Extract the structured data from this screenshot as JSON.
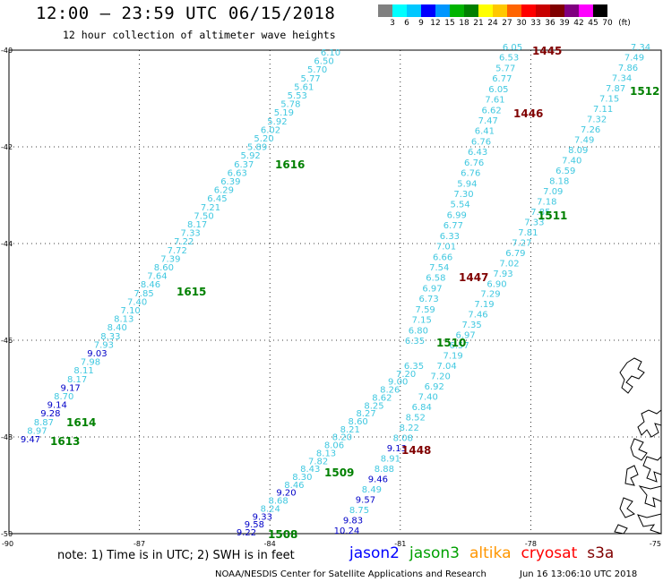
{
  "header": {
    "title": "12:00 – 23:59 UTC 06/15/2018",
    "subtitle": "12 hour collection of altimeter wave heights"
  },
  "legend": {
    "levels": [
      "3",
      "6",
      "9",
      "12",
      "15",
      "18",
      "21",
      "24",
      "27",
      "30",
      "33",
      "36",
      "39",
      "42",
      "45",
      "70",
      "(ft)"
    ],
    "colors": [
      "#808080",
      "#00ffff",
      "#00c8ff",
      "#0000ff",
      "#0096ff",
      "#00b400",
      "#008000",
      "#ffff00",
      "#ffc800",
      "#ff6400",
      "#ff0000",
      "#c80000",
      "#800000",
      "#800080",
      "#ff00ff",
      "#000000"
    ]
  },
  "axes": {
    "lat_labels": [
      "-40",
      "-42",
      "-44",
      "-46",
      "-48",
      "-50"
    ],
    "lon_labels": [
      "-90",
      "-87",
      "-84",
      "-81",
      "-78",
      "-75"
    ]
  },
  "colors": {
    "light": "#40c8e0",
    "blue": "#0000c8",
    "green": "#008000",
    "maroon": "#800000"
  },
  "tracks": [
    {
      "values": [
        "6.10",
        "6.50",
        "5.70",
        "5.77",
        "5.61",
        "5.53",
        "5.78",
        "5.19",
        "5.92",
        "6.02",
        "5.20",
        "5.89",
        "5.92",
        "6.37",
        "6.63",
        "6.39",
        "6.29",
        "6.45",
        "7.21",
        "7.50",
        "8.17",
        "7.33",
        "7.22",
        "7.72",
        "7.39",
        "8.60",
        "7.64",
        "8.46",
        "7.85",
        "7.40",
        "7.10",
        "8.13",
        "8.40",
        "8.33",
        "7.93",
        "9.03",
        "7.98",
        "8.11",
        "8.17",
        "9.17",
        "8.70",
        "9.14",
        "9.28",
        "8.87",
        "8.97",
        "9.47"
      ],
      "colorIdx": [
        0,
        0,
        0,
        0,
        0,
        0,
        0,
        0,
        0,
        0,
        0,
        0,
        0,
        0,
        0,
        0,
        0,
        0,
        0,
        0,
        0,
        0,
        0,
        0,
        0,
        0,
        0,
        0,
        0,
        0,
        0,
        0,
        0,
        0,
        0,
        1,
        0,
        0,
        0,
        1,
        0,
        1,
        1,
        0,
        0,
        1
      ]
    },
    {
      "values": [
        "6.05",
        "6.53",
        "5.77",
        "6.77",
        "6.05",
        "7.61",
        "6.62",
        "7.47",
        "6.41",
        "6.76",
        "6.43",
        "6.76",
        "6.76",
        "5.94",
        "7.30",
        "5.54",
        "6.99",
        "6.77",
        "6.33",
        "7.01",
        "6.66",
        "7.54",
        "6.58",
        "6.97",
        "6.73",
        "7.59",
        "7.15",
        "6.80",
        "6.35"
      ],
      "colorIdx": [
        0,
        0,
        0,
        0,
        0,
        0,
        0,
        0,
        0,
        0,
        0,
        0,
        0,
        0,
        0,
        0,
        0,
        0,
        0,
        0,
        0,
        0,
        0,
        0,
        0,
        0,
        0,
        0,
        0
      ]
    },
    {
      "values": [
        "7.34",
        "7.49",
        "7.86",
        "7.34",
        "7.87",
        "7.15",
        "7.11",
        "7.32",
        "7.26",
        "7.49",
        "8.09",
        "7.40",
        "6.59",
        "8.18",
        "7.09",
        "7.18",
        "7.85",
        "7.33",
        "7.81",
        "7.27",
        "6.79",
        "7.02",
        "7.93",
        "6.90",
        "7.29",
        "7.19",
        "7.46",
        "7.35",
        "6.97",
        "6.57",
        "7.19",
        "7.04",
        "7.20",
        "6.92",
        "7.40",
        "6.84",
        "8.52",
        "8.22",
        "8.08",
        "9.13",
        "8.91",
        "8.88",
        "9.46",
        "8.49",
        "9.57",
        "8.75",
        "9.83",
        "10.24"
      ],
      "colorIdx": [
        0,
        0,
        0,
        0,
        0,
        0,
        0,
        0,
        0,
        0,
        0,
        0,
        0,
        0,
        0,
        0,
        0,
        0,
        0,
        0,
        0,
        0,
        0,
        0,
        0,
        0,
        0,
        0,
        0,
        0,
        0,
        0,
        0,
        0,
        0,
        0,
        0,
        0,
        0,
        1,
        0,
        0,
        1,
        0,
        1,
        0,
        1,
        1
      ]
    },
    {
      "values": [
        "6.35",
        "7.20",
        "9.00",
        "8.26",
        "8.62",
        "8.25",
        "8.27",
        "8.60",
        "8.21",
        "8.20",
        "8.06",
        "8.13",
        "7.82",
        "8.43",
        "8.30",
        "8.46",
        "9.20",
        "8.68",
        "8.24",
        "9.33",
        "9.58",
        "9.22"
      ],
      "colorIdx": [
        0,
        0,
        0,
        0,
        0,
        0,
        0,
        0,
        0,
        0,
        0,
        0,
        0,
        0,
        0,
        0,
        1,
        0,
        0,
        1,
        1,
        1
      ]
    }
  ],
  "pass_labels": [
    {
      "text": "1445",
      "color": "maroon"
    },
    {
      "text": "1446",
      "color": "maroon"
    },
    {
      "text": "1447",
      "color": "maroon"
    },
    {
      "text": "1448",
      "color": "maroon"
    },
    {
      "text": "1512",
      "color": "green"
    },
    {
      "text": "1511",
      "color": "green"
    },
    {
      "text": "1510",
      "color": "green"
    },
    {
      "text": "1616",
      "color": "green"
    },
    {
      "text": "1615",
      "color": "green"
    },
    {
      "text": "1614",
      "color": "green"
    },
    {
      "text": "1613",
      "color": "green"
    },
    {
      "text": "1509",
      "color": "green"
    },
    {
      "text": "1508",
      "color": "green"
    }
  ],
  "footer": {
    "note": "note: 1) Time is in UTC; 2) SWH is in feet",
    "satellites": [
      {
        "name": "jason2",
        "color": "#0000ff"
      },
      {
        "name": "jason3",
        "color": "#00a000"
      },
      {
        "name": "altika",
        "color": "#ff9600"
      },
      {
        "name": "cryosat",
        "color": "#ff0000"
      },
      {
        "name": "s3a",
        "color": "#800000"
      }
    ],
    "credit": "NOAA/NESDIS Center for Satellite Applications and Research",
    "timestamp": "Jun 16 13:06:10 UTC 2018"
  }
}
